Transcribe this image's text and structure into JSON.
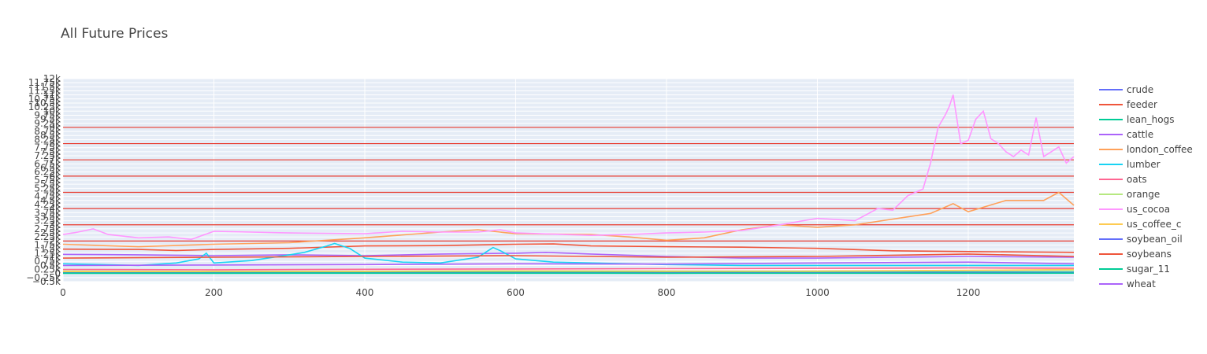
{
  "chart_data": {
    "type": "line",
    "title": "All Future Prices",
    "xlabel": "",
    "ylabel": "",
    "xlim": [
      0,
      1340
    ],
    "ylim": [
      -500,
      12000
    ],
    "x_ticks": [
      0,
      200,
      400,
      600,
      800,
      1000,
      1200
    ],
    "y_ticks": [
      -500,
      -250,
      0,
      250,
      500,
      750,
      1000,
      1250,
      1500,
      1750,
      2000,
      2250,
      2500,
      2750,
      3000,
      3250,
      3500,
      3750,
      4000,
      4250,
      4500,
      4750,
      5000,
      5250,
      5500,
      5750,
      6000,
      6250,
      6500,
      6750,
      7000,
      7250,
      7500,
      7750,
      8000,
      8250,
      8500,
      8750,
      9000,
      9250,
      9500,
      9750,
      10000,
      10250,
      10500,
      10750,
      11000,
      11250,
      11500,
      11750,
      12000
    ],
    "y_tick_labels": [
      "−0.5k",
      "−0.25k",
      "0",
      "0.25k",
      "0.5k",
      "0.75k",
      "1k",
      "1.25k",
      "1.5k",
      "1.75k",
      "2k",
      "2.25k",
      "2.5k",
      "2.75k",
      "3k",
      "3.25k",
      "3.5k",
      "3.75k",
      "4k",
      "4.25k",
      "4.5k",
      "4.75k",
      "5k",
      "5.25k",
      "5.5k",
      "5.75k",
      "6k",
      "6.25k",
      "6.5k",
      "6.75k",
      "7k",
      "7.25k",
      "7.5k",
      "7.75k",
      "8k",
      "8.25k",
      "8.5k",
      "8.75k",
      "9k",
      "9.25k",
      "9.5k",
      "9.75k",
      "10k",
      "10.25k",
      "10.5k",
      "10.75k",
      "11k",
      "11.25k",
      "11.5k",
      "11.75k",
      "12k"
    ],
    "horizontal_lines": [
      2000,
      3000,
      4000,
      5000,
      6000,
      7000,
      8000,
      9000
    ],
    "horizontal_line_color": "#e8392d",
    "grid": true,
    "legend_position": "right",
    "series": [
      {
        "name": "crude",
        "color": "#636efa",
        "x": [
          0,
          100,
          200,
          300,
          400,
          500,
          600,
          700,
          800,
          900,
          1000,
          1100,
          1200,
          1340
        ],
        "y": [
          55,
          60,
          58,
          55,
          50,
          48,
          60,
          62,
          45,
          40,
          50,
          60,
          80,
          70
        ]
      },
      {
        "name": "feeder",
        "color": "#ef553b",
        "x": [
          0,
          100,
          150,
          200,
          300,
          400,
          500,
          600,
          650,
          700,
          800,
          900,
          1000,
          1100,
          1200,
          1340
        ],
        "y": [
          1500,
          1480,
          1420,
          1480,
          1550,
          1700,
          1720,
          1800,
          1820,
          1700,
          1650,
          1620,
          1550,
          1400,
          1350,
          1300
        ]
      },
      {
        "name": "lean_hogs",
        "color": "#00cc96",
        "x": [
          0,
          200,
          400,
          600,
          800,
          1000,
          1200,
          1340
        ],
        "y": [
          80,
          85,
          80,
          90,
          85,
          80,
          90,
          85
        ]
      },
      {
        "name": "cattle",
        "color": "#ab63fa",
        "x": [
          0,
          100,
          200,
          300,
          400,
          500,
          600,
          640,
          700,
          800,
          900,
          1000,
          1100,
          1200,
          1340
        ],
        "y": [
          1180,
          1150,
          1100,
          1150,
          1100,
          1200,
          1250,
          1300,
          1200,
          1050,
          950,
          950,
          1000,
          1050,
          1000
        ]
      },
      {
        "name": "london_coffee",
        "color": "#ffa15a",
        "x": [
          0,
          100,
          200,
          300,
          400,
          500,
          550,
          600,
          700,
          750,
          800,
          850,
          900,
          950,
          1000,
          1050,
          1100,
          1150,
          1180,
          1200,
          1250,
          1300,
          1320,
          1340
        ],
        "y": [
          1800,
          1650,
          1800,
          1900,
          2200,
          2550,
          2700,
          2450,
          2400,
          2250,
          2050,
          2200,
          2700,
          3000,
          2850,
          3000,
          3350,
          3700,
          4300,
          3800,
          4500,
          4500,
          5000,
          4200
        ]
      },
      {
        "name": "lumber",
        "color": "#19d3f3",
        "x": [
          0,
          50,
          100,
          150,
          180,
          190,
          200,
          250,
          300,
          320,
          350,
          360,
          380,
          400,
          450,
          500,
          550,
          570,
          580,
          600,
          650,
          700,
          800,
          900,
          1000,
          1100,
          1200,
          1340
        ],
        "y": [
          600,
          550,
          500,
          650,
          900,
          1250,
          650,
          800,
          1150,
          1300,
          1700,
          1850,
          1550,
          950,
          700,
          650,
          1000,
          1600,
          1400,
          900,
          700,
          650,
          550,
          500,
          500,
          500,
          500,
          500
        ]
      },
      {
        "name": "oats",
        "color": "#ff6692",
        "x": [
          0,
          200,
          400,
          600,
          800,
          1000,
          1200,
          1340
        ],
        "y": [
          250,
          230,
          260,
          280,
          300,
          320,
          350,
          320
        ]
      },
      {
        "name": "orange",
        "color": "#b6e880",
        "x": [
          0,
          200,
          400,
          600,
          800,
          1000,
          1200,
          1340
        ],
        "y": [
          150,
          140,
          130,
          160,
          150,
          140,
          180,
          200
        ]
      },
      {
        "name": "us_cocoa",
        "color": "#ff97ff",
        "x": [
          0,
          20,
          40,
          60,
          100,
          140,
          170,
          200,
          300,
          400,
          450,
          500,
          550,
          580,
          600,
          700,
          750,
          800,
          850,
          900,
          950,
          1000,
          1050,
          1080,
          1100,
          1120,
          1140,
          1150,
          1160,
          1170,
          1175,
          1180,
          1185,
          1190,
          1200,
          1210,
          1220,
          1230,
          1240,
          1250,
          1260,
          1270,
          1280,
          1290,
          1300,
          1310,
          1320,
          1330,
          1340
        ],
        "y": [
          2400,
          2550,
          2750,
          2400,
          2200,
          2250,
          2100,
          2600,
          2500,
          2450,
          2600,
          2550,
          2550,
          2700,
          2500,
          2350,
          2400,
          2500,
          2550,
          2650,
          3000,
          3400,
          3250,
          4000,
          3900,
          4800,
          5200,
          6800,
          9000,
          9800,
          10300,
          11000,
          9500,
          8000,
          8200,
          9500,
          10000,
          8300,
          8000,
          7500,
          7200,
          7600,
          7300,
          9600,
          7200,
          7500,
          7800,
          6800,
          7200
        ]
      },
      {
        "name": "us_coffee_c",
        "color": "#fecb52",
        "x": [
          0,
          200,
          400,
          600,
          800,
          1000,
          1200,
          1340
        ],
        "y": [
          120,
          130,
          140,
          160,
          140,
          150,
          200,
          250
        ]
      },
      {
        "name": "soybean_oil",
        "color": "#636efa",
        "x": [
          0,
          200,
          400,
          600,
          800,
          1000,
          1200,
          1340
        ],
        "y": [
          30,
          32,
          35,
          40,
          38,
          45,
          60,
          55
        ]
      },
      {
        "name": "soybeans",
        "color": "#ef553b",
        "x": [
          0,
          200,
          400,
          600,
          800,
          1000,
          1200,
          1340
        ],
        "y": [
          950,
          1000,
          1050,
          1100,
          1000,
          1050,
          1200,
          1050
        ]
      },
      {
        "name": "sugar_11",
        "color": "#00cc96",
        "x": [
          0,
          200,
          400,
          600,
          800,
          1000,
          1200,
          1340
        ],
        "y": [
          15,
          14,
          16,
          18,
          15,
          17,
          20,
          22
        ]
      },
      {
        "name": "wheat",
        "color": "#ab63fa",
        "x": [
          0,
          200,
          400,
          600,
          800,
          1000,
          1200,
          1340
        ],
        "y": [
          500,
          520,
          550,
          600,
          580,
          650,
          700,
          600
        ]
      }
    ]
  }
}
